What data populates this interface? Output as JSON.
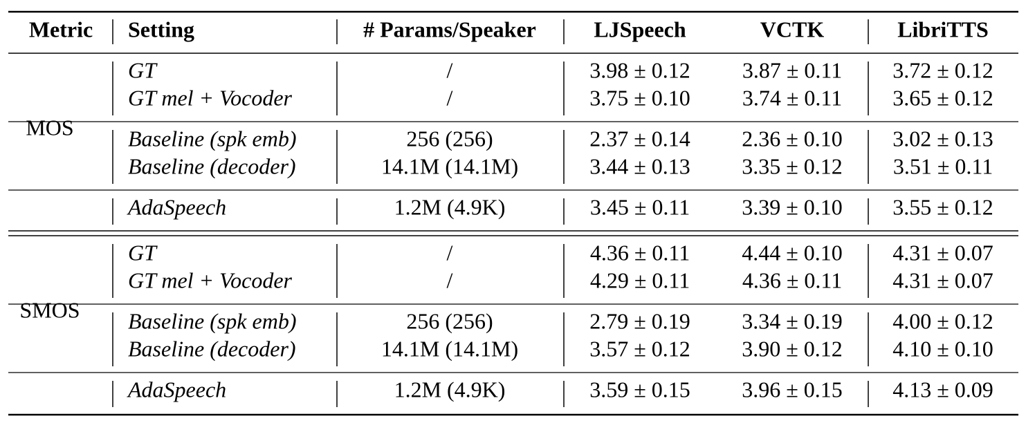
{
  "table": {
    "header": [
      "Metric",
      "Setting",
      "# Params/Speaker",
      "LJSpeech",
      "VCTK",
      "LibriTTS"
    ],
    "groups": [
      {
        "metric": "MOS",
        "blocks": [
          [
            {
              "setting": "GT",
              "params": "/",
              "cells": [
                "3.98 ± 0.12",
                "3.87 ± 0.11",
                "3.72 ± 0.12"
              ]
            },
            {
              "setting": "GT mel + Vocoder",
              "params": "/",
              "cells": [
                "3.75 ± 0.10",
                "3.74 ± 0.11",
                "3.65 ± 0.12"
              ]
            }
          ],
          [
            {
              "setting": "Baseline (spk emb)",
              "params": "256 (256)",
              "cells": [
                "2.37 ± 0.14",
                "2.36 ± 0.10",
                "3.02 ± 0.13"
              ]
            },
            {
              "setting": "Baseline (decoder)",
              "params": "14.1M (14.1M)",
              "cells": [
                "3.44 ± 0.13",
                "3.35 ± 0.12",
                "3.51 ± 0.11"
              ]
            }
          ],
          [
            {
              "setting": "AdaSpeech",
              "params": "1.2M (4.9K)",
              "cells": [
                "3.45 ± 0.11",
                "3.39 ± 0.10",
                "3.55 ± 0.12"
              ]
            }
          ]
        ]
      },
      {
        "metric": "SMOS",
        "blocks": [
          [
            {
              "setting": "GT",
              "params": "/",
              "cells": [
                "4.36 ± 0.11",
                "4.44 ± 0.10",
                "4.31 ± 0.07"
              ]
            },
            {
              "setting": "GT mel + Vocoder",
              "params": "/",
              "cells": [
                "4.29 ± 0.11",
                "4.36 ± 0.11",
                "4.31 ± 0.07"
              ]
            }
          ],
          [
            {
              "setting": "Baseline (spk emb)",
              "params": "256 (256)",
              "cells": [
                "2.79 ± 0.19",
                "3.34 ± 0.19",
                "4.00 ± 0.12"
              ]
            },
            {
              "setting": "Baseline (decoder)",
              "params": "14.1M (14.1M)",
              "cells": [
                "3.57 ± 0.12",
                "3.90 ± 0.12",
                "4.10 ± 0.10"
              ]
            }
          ],
          [
            {
              "setting": "AdaSpeech",
              "params": "1.2M (4.9K)",
              "cells": [
                "3.59 ± 0.15",
                "3.96 ± 0.15",
                "4.13 ± 0.09"
              ]
            }
          ]
        ]
      }
    ]
  }
}
